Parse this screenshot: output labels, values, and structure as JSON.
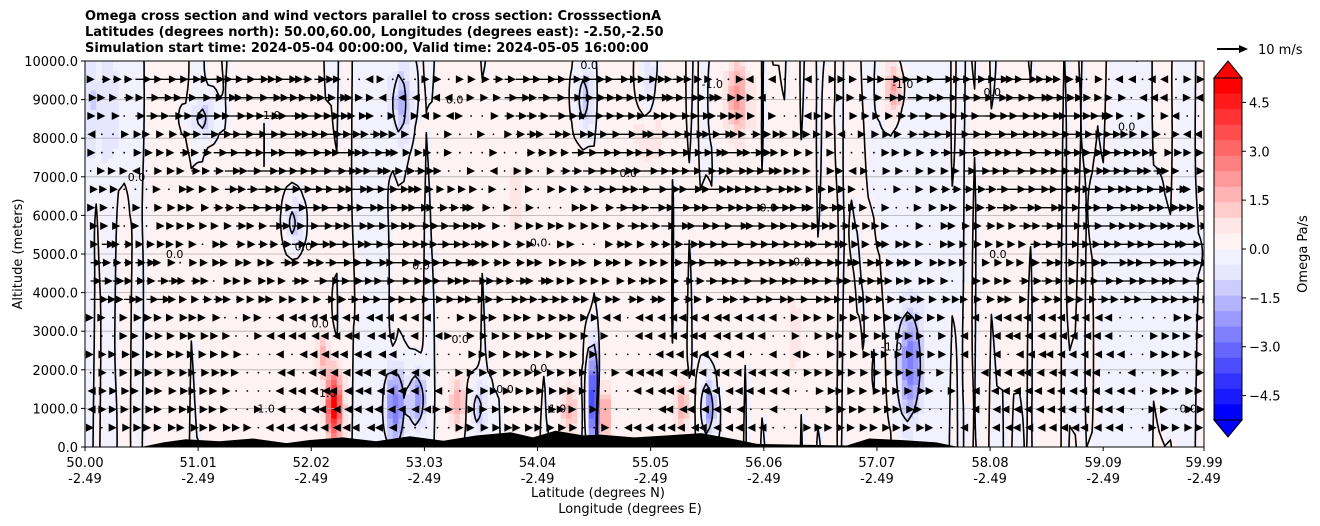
{
  "chart_data": {
    "type": "contourf",
    "title_lines": [
      "Omega cross section and wind vectors parallel to cross section: CrosssectionA",
      "Latitudes (degrees north): 50.00,60.00, Longitudes (degrees east): -2.50,-2.50",
      "Simulation start time: 2024-05-04 00:00:00, Valid time: 2024-05-05 16:00:00"
    ],
    "xlabel_line1": "Latitude (degrees N)",
    "xlabel_line2": "Longitude (degrees E)",
    "ylabel": "Altitude (meters)",
    "xlim": [
      50.0,
      59.99
    ],
    "ylim": [
      0,
      10000
    ],
    "x_ticks": [
      {
        "value": 50.0,
        "lat": "50.00",
        "lon": "-2.49"
      },
      {
        "value": 51.01,
        "lat": "51.01",
        "lon": "-2.49"
      },
      {
        "value": 52.02,
        "lat": "52.02",
        "lon": "-2.49"
      },
      {
        "value": 53.03,
        "lat": "53.03",
        "lon": "-2.49"
      },
      {
        "value": 54.04,
        "lat": "54.04",
        "lon": "-2.49"
      },
      {
        "value": 55.05,
        "lat": "55.05",
        "lon": "-2.49"
      },
      {
        "value": 56.06,
        "lat": "56.06",
        "lon": "-2.49"
      },
      {
        "value": 57.07,
        "lat": "57.07",
        "lon": "-2.49"
      },
      {
        "value": 58.08,
        "lat": "58.08",
        "lon": "-2.49"
      },
      {
        "value": 59.09,
        "lat": "59.09",
        "lon": "-2.49"
      },
      {
        "value": 59.99,
        "lat": "59.99",
        "lon": "-2.49"
      }
    ],
    "y_ticks": [
      {
        "value": 0,
        "label": "0.0"
      },
      {
        "value": 1000,
        "label": "1000.0"
      },
      {
        "value": 2000,
        "label": "2000.0"
      },
      {
        "value": 3000,
        "label": "3000.0"
      },
      {
        "value": 4000,
        "label": "4000.0"
      },
      {
        "value": 5000,
        "label": "5000.0"
      },
      {
        "value": 6000,
        "label": "6000.0"
      },
      {
        "value": 7000,
        "label": "7000.0"
      },
      {
        "value": 8000,
        "label": "8000.0"
      },
      {
        "value": 9000,
        "label": "9000.0"
      },
      {
        "value": 10000,
        "label": "10000.0"
      }
    ],
    "grid": "horizontal",
    "colorbar": {
      "label": "Omega Pa/s",
      "range": [
        -5.25,
        5.25
      ],
      "ticks": [
        {
          "value": 4.5,
          "label": "4.5"
        },
        {
          "value": 3.0,
          "label": "3.0"
        },
        {
          "value": 1.5,
          "label": "1.5"
        },
        {
          "value": 0.0,
          "label": "0.0"
        },
        {
          "value": -1.5,
          "label": "−1.5"
        },
        {
          "value": -3.0,
          "label": "−3.0"
        },
        {
          "value": -4.5,
          "label": "−4.5"
        }
      ],
      "colors_top_to_bottom": [
        "#ff0000",
        "#ff1a1a",
        "#ff3333",
        "#ff4d4d",
        "#ff6666",
        "#ff8080",
        "#ff9999",
        "#ffb3b3",
        "#ffcccc",
        "#ffe6e6",
        "#fff2f2",
        "#f2f2ff",
        "#e6e6ff",
        "#ccccff",
        "#b3b3ff",
        "#9999ff",
        "#8080ff",
        "#6666ff",
        "#4d4dff",
        "#3333ff",
        "#1a1aff",
        "#0000ff"
      ],
      "extend": "both"
    },
    "quiver_key": {
      "label": "10 m/s",
      "speed": 10
    },
    "contour_levels": [
      -1.0,
      0.0
    ],
    "contour_labels": [
      {
        "x": 50.46,
        "y": 7000,
        "text": "0.0"
      },
      {
        "x": 50.8,
        "y": 5000,
        "text": "0.0"
      },
      {
        "x": 51.65,
        "y": 8600,
        "text": "-1.0"
      },
      {
        "x": 51.6,
        "y": 1000,
        "text": "-1.0"
      },
      {
        "x": 51.95,
        "y": 5200,
        "text": "0.0"
      },
      {
        "x": 52.1,
        "y": 3200,
        "text": "0.0"
      },
      {
        "x": 52.15,
        "y": 1400,
        "text": "-1.0"
      },
      {
        "x": 53.0,
        "y": 4700,
        "text": "0.0"
      },
      {
        "x": 53.3,
        "y": 9000,
        "text": "0.0"
      },
      {
        "x": 53.35,
        "y": 2800,
        "text": "0.0"
      },
      {
        "x": 53.75,
        "y": 1500,
        "text": "0.0"
      },
      {
        "x": 54.05,
        "y": 5300,
        "text": "0.0"
      },
      {
        "x": 54.05,
        "y": 2050,
        "text": "0.0"
      },
      {
        "x": 54.2,
        "y": 1000,
        "text": "-1.0"
      },
      {
        "x": 54.5,
        "y": 9900,
        "text": "0.0"
      },
      {
        "x": 54.85,
        "y": 7100,
        "text": "0.0"
      },
      {
        "x": 55.6,
        "y": 9400,
        "text": "-1.0"
      },
      {
        "x": 56.1,
        "y": 6200,
        "text": "0.0"
      },
      {
        "x": 56.4,
        "y": 4800,
        "text": "0.0"
      },
      {
        "x": 57.3,
        "y": 9400,
        "text": "-1.0"
      },
      {
        "x": 57.2,
        "y": 2600,
        "text": "-1.0"
      },
      {
        "x": 58.15,
        "y": 5000,
        "text": "0.0"
      },
      {
        "x": 58.1,
        "y": 9200,
        "text": "0.0"
      },
      {
        "x": 59.3,
        "y": 8300,
        "text": "0.0"
      },
      {
        "x": 59.85,
        "y": 1000,
        "text": "0.0"
      }
    ],
    "omega_features": [
      {
        "x": 50.1,
        "y": 8800,
        "sx": 0.18,
        "sy": 1200,
        "amp": -0.8
      },
      {
        "x": 51.05,
        "y": 8500,
        "sx": 0.08,
        "sy": 400,
        "amp": -1.2
      },
      {
        "x": 51.85,
        "y": 5800,
        "sx": 0.06,
        "sy": 500,
        "amp": -1.4
      },
      {
        "x": 52.2,
        "y": 1000,
        "sx": 0.05,
        "sy": 600,
        "amp": 5.2
      },
      {
        "x": 52.1,
        "y": 2300,
        "sx": 0.04,
        "sy": 400,
        "amp": 1.5
      },
      {
        "x": 52.75,
        "y": 1000,
        "sx": 0.06,
        "sy": 700,
        "amp": -3.0
      },
      {
        "x": 52.95,
        "y": 1200,
        "sx": 0.05,
        "sy": 500,
        "amp": -2.4
      },
      {
        "x": 53.3,
        "y": 1100,
        "sx": 0.05,
        "sy": 500,
        "amp": 1.8
      },
      {
        "x": 52.8,
        "y": 8900,
        "sx": 0.07,
        "sy": 800,
        "amp": -1.6
      },
      {
        "x": 53.5,
        "y": 1000,
        "sx": 0.05,
        "sy": 500,
        "amp": -1.4
      },
      {
        "x": 54.3,
        "y": 900,
        "sx": 0.06,
        "sy": 500,
        "amp": 1.5
      },
      {
        "x": 54.45,
        "y": 9000,
        "sx": 0.05,
        "sy": 600,
        "amp": -1.6
      },
      {
        "x": 54.52,
        "y": 1200,
        "sx": 0.03,
        "sy": 900,
        "amp": -5.0
      },
      {
        "x": 54.62,
        "y": 800,
        "sx": 0.04,
        "sy": 500,
        "amp": 2.2
      },
      {
        "x": 55.0,
        "y": 9200,
        "sx": 0.06,
        "sy": 700,
        "amp": -1.5
      },
      {
        "x": 55.3,
        "y": 1000,
        "sx": 0.05,
        "sy": 500,
        "amp": 1.7
      },
      {
        "x": 55.55,
        "y": 1000,
        "sx": 0.04,
        "sy": 500,
        "amp": -2.3
      },
      {
        "x": 55.8,
        "y": 9000,
        "sx": 0.08,
        "sy": 700,
        "amp": 1.9
      },
      {
        "x": 55.0,
        "y": 8400,
        "sx": 0.1,
        "sy": 900,
        "amp": 1.0
      },
      {
        "x": 57.2,
        "y": 9200,
        "sx": 0.06,
        "sy": 500,
        "amp": 2.0
      },
      {
        "x": 57.35,
        "y": 2100,
        "sx": 0.07,
        "sy": 900,
        "amp": -2.6
      },
      {
        "x": 56.2,
        "y": 4500,
        "sx": 0.4,
        "sy": 3000,
        "amp": 0.35
      },
      {
        "x": 58.3,
        "y": 6000,
        "sx": 0.5,
        "sy": 3000,
        "amp": 0.3
      },
      {
        "x": 59.2,
        "y": 4000,
        "sx": 0.4,
        "sy": 3000,
        "amp": -0.3
      },
      {
        "x": 53.9,
        "y": 6000,
        "sx": 0.5,
        "sy": 3000,
        "amp": 0.3
      },
      {
        "x": 57.4,
        "y": 6200,
        "sx": 0.5,
        "sy": 3000,
        "amp": -0.3
      },
      {
        "x": 51.5,
        "y": 4000,
        "sx": 0.4,
        "sy": 3000,
        "amp": 0.3
      }
    ],
    "terrain": [
      [
        50.0,
        0
      ],
      [
        50.5,
        0
      ],
      [
        50.7,
        120
      ],
      [
        50.9,
        200
      ],
      [
        51.2,
        150
      ],
      [
        51.5,
        220
      ],
      [
        51.8,
        100
      ],
      [
        52.0,
        180
      ],
      [
        52.3,
        250
      ],
      [
        52.6,
        150
      ],
      [
        52.9,
        280
      ],
      [
        53.2,
        160
      ],
      [
        53.5,
        300
      ],
      [
        53.8,
        380
      ],
      [
        54.0,
        250
      ],
      [
        54.2,
        420
      ],
      [
        54.45,
        300
      ],
      [
        54.6,
        320
      ],
      [
        54.9,
        250
      ],
      [
        55.2,
        300
      ],
      [
        55.5,
        360
      ],
      [
        55.8,
        200
      ],
      [
        56.0,
        80
      ],
      [
        56.4,
        60
      ],
      [
        56.8,
        40
      ],
      [
        57.0,
        220
      ],
      [
        57.3,
        180
      ],
      [
        57.6,
        120
      ],
      [
        57.8,
        0
      ],
      [
        59.99,
        0
      ]
    ]
  }
}
